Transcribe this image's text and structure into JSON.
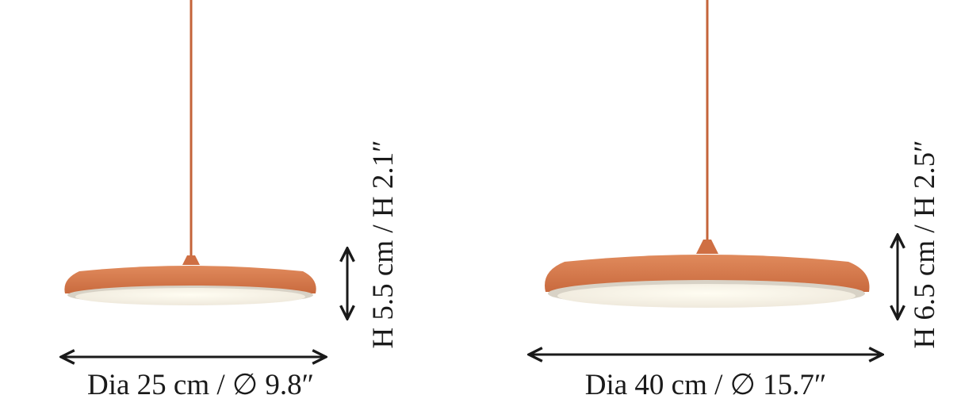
{
  "products": [
    {
      "diameter_label": "Dia 25 cm / ∅ 9.8″",
      "height_label": "H 5.5 cm / H 2.1″"
    },
    {
      "diameter_label": "Dia 40 cm / ∅ 15.7″",
      "height_label": "H 6.5 cm / H 2.5″"
    }
  ]
}
